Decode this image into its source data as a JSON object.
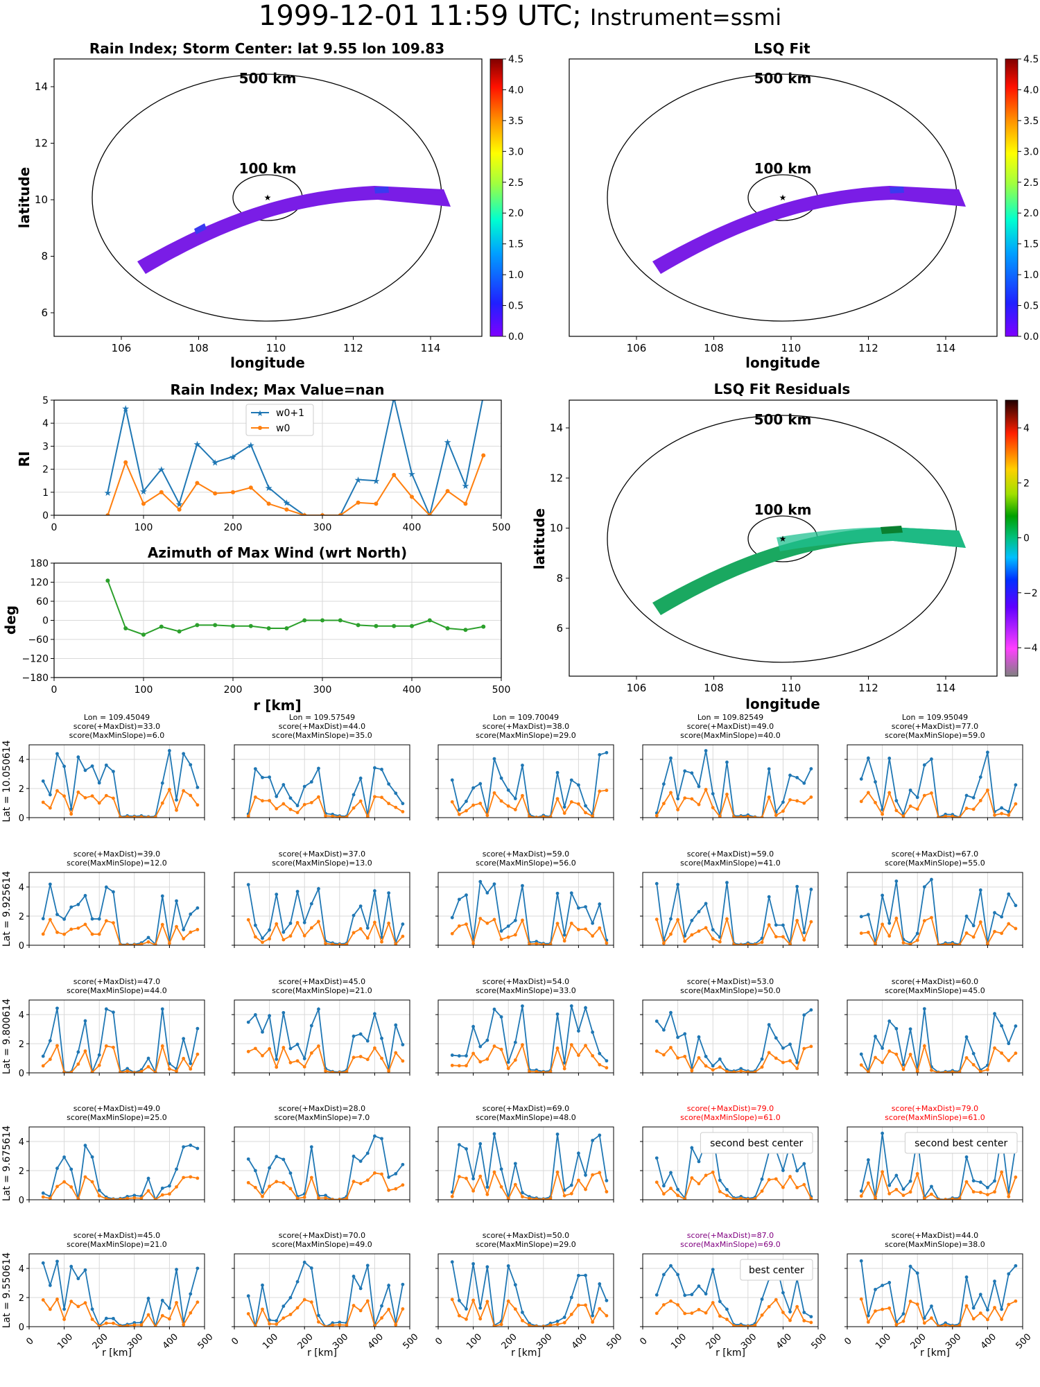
{
  "title": {
    "date": "1999-12-01 11:59 UTC;",
    "instrument": "Instrument=ssmi"
  },
  "colors": {
    "w0p1": "#1f77b4",
    "w0": "#ff7f0e",
    "azimuth": "#2ca02c",
    "highlight_red": "#ff0000",
    "highlight_purple": "#800080",
    "grid": "#d9d9d9"
  },
  "rain_map": {
    "title": "Rain Index; Storm Center: lat 9.55 lon 109.83",
    "xlabel": "longitude",
    "ylabel": "latitude",
    "circle_500": "500 km",
    "circle_100": "100 km",
    "xticks": [
      "106",
      "108",
      "110",
      "112",
      "114"
    ],
    "yticks": [
      "6",
      "8",
      "10",
      "12",
      "14"
    ],
    "colorbar_ticks": [
      "0.0",
      "0.5",
      "1.0",
      "1.5",
      "2.0",
      "2.5",
      "3.0",
      "3.5",
      "4.0",
      "4.5"
    ]
  },
  "lsq_map": {
    "title": "LSQ Fit",
    "xlabel": "longitude",
    "circle_500": "500 km",
    "circle_100": "100 km",
    "xticks": [
      "106",
      "108",
      "110",
      "112",
      "114"
    ],
    "colorbar_ticks": [
      "0.0",
      "0.5",
      "1.0",
      "1.5",
      "2.0",
      "2.5",
      "3.0",
      "3.5",
      "4.0",
      "4.5"
    ]
  },
  "resid_map": {
    "title": "LSQ Fit Residuals",
    "xlabel": "longitude",
    "ylabel": "latitude",
    "circle_500": "500 km",
    "circle_100": "100 km",
    "xticks": [
      "106",
      "108",
      "110",
      "112",
      "114"
    ],
    "yticks": [
      "6",
      "8",
      "10",
      "12",
      "14"
    ],
    "colorbar_ticks": [
      "−4",
      "−2",
      "0",
      "2",
      "4"
    ]
  },
  "chart_data": [
    {
      "type": "line",
      "title": "Rain Index; Max Value=nan",
      "ylabel": "RI",
      "xlim": [
        0,
        500
      ],
      "ylim": [
        0,
        5
      ],
      "xticks": [
        "0",
        "100",
        "200",
        "300",
        "400",
        "500"
      ],
      "yticks": [
        "0",
        "1",
        "2",
        "3",
        "4",
        "5"
      ],
      "legend": "top-center",
      "series": [
        {
          "name": "w0+1",
          "x": [
            60,
            80,
            100,
            120,
            140,
            160,
            180,
            200,
            220,
            240,
            260,
            280,
            300,
            320,
            340,
            360,
            380,
            400,
            420,
            440,
            460,
            480
          ],
          "values": [
            1.0,
            4.65,
            1.05,
            2.0,
            0.5,
            3.1,
            2.3,
            2.55,
            3.05,
            1.2,
            0.55,
            0,
            0,
            0,
            1.55,
            1.5,
            5.1,
            1.8,
            0,
            3.2,
            1.3,
            5.2
          ]
        },
        {
          "name": "w0",
          "x": [
            60,
            80,
            100,
            120,
            140,
            160,
            180,
            200,
            220,
            240,
            260,
            280,
            300,
            320,
            340,
            360,
            380,
            400,
            420,
            440,
            460,
            480
          ],
          "values": [
            0,
            2.3,
            0.5,
            1.0,
            0.25,
            1.4,
            0.95,
            1.0,
            1.2,
            0.5,
            0.25,
            0,
            0,
            0,
            0.55,
            0.5,
            1.75,
            0.8,
            0,
            1.05,
            0.5,
            2.6
          ]
        }
      ]
    },
    {
      "type": "line",
      "title": "Azimuth of Max Wind (wrt North)",
      "xlabel": "r [km]",
      "ylabel": "deg",
      "xlim": [
        0,
        500
      ],
      "ylim": [
        -180,
        180
      ],
      "xticks": [
        "0",
        "100",
        "200",
        "300",
        "400",
        "500"
      ],
      "yticks": [
        "180",
        "120",
        "60",
        "0",
        "−60",
        "−120",
        "−180"
      ],
      "series": [
        {
          "x": [
            60,
            80,
            100,
            120,
            140,
            160,
            180,
            200,
            220,
            240,
            260,
            280,
            300,
            320,
            340,
            360,
            380,
            400,
            420,
            440,
            460,
            480
          ],
          "values": [
            125,
            -25,
            -45,
            -20,
            -35,
            -15,
            -15,
            -18,
            -18,
            -25,
            -25,
            0,
            0,
            0,
            -15,
            -18,
            -18,
            -18,
            0,
            -25,
            -30,
            -20
          ]
        }
      ]
    }
  ],
  "grid": {
    "xlabel": "r [km]",
    "xticks": [
      "0",
      "100",
      "200",
      "300",
      "400",
      "500"
    ],
    "yticks": [
      "0",
      "2",
      "4"
    ],
    "lon_prefix": "Lon = ",
    "lons": [
      "109.45049",
      "109.57549",
      "109.70049",
      "109.82549",
      "109.95049"
    ],
    "lats": [
      "Lat = 10.050614",
      "Lat = 9.925614",
      "Lat = 9.800614",
      "Lat = 9.675614",
      "Lat = 9.550614"
    ],
    "cells": [
      [
        {
          "s1": "score(+MaxDist)=33.0",
          "s2": "score(MaxMinSlope)=6.0"
        },
        {
          "s1": "score(+MaxDist)=44.0",
          "s2": "score(MaxMinSlope)=35.0"
        },
        {
          "s1": "score(+MaxDist)=38.0",
          "s2": "score(MaxMinSlope)=29.0"
        },
        {
          "s1": "score(+MaxDist)=49.0",
          "s2": "score(MaxMinSlope)=40.0"
        },
        {
          "s1": "score(+MaxDist)=77.0",
          "s2": "score(MaxMinSlope)=59.0"
        }
      ],
      [
        {
          "s1": "score(+MaxDist)=39.0",
          "s2": "score(MaxMinSlope)=12.0"
        },
        {
          "s1": "score(+MaxDist)=37.0",
          "s2": "score(MaxMinSlope)=13.0"
        },
        {
          "s1": "score(+MaxDist)=59.0",
          "s2": "score(MaxMinSlope)=56.0"
        },
        {
          "s1": "score(+MaxDist)=59.0",
          "s2": "score(MaxMinSlope)=41.0"
        },
        {
          "s1": "score(+MaxDist)=67.0",
          "s2": "score(MaxMinSlope)=55.0"
        }
      ],
      [
        {
          "s1": "score(+MaxDist)=47.0",
          "s2": "score(MaxMinSlope)=44.0"
        },
        {
          "s1": "score(+MaxDist)=45.0",
          "s2": "score(MaxMinSlope)=21.0"
        },
        {
          "s1": "score(+MaxDist)=54.0",
          "s2": "score(MaxMinSlope)=33.0"
        },
        {
          "s1": "score(+MaxDist)=53.0",
          "s2": "score(MaxMinSlope)=50.0"
        },
        {
          "s1": "score(+MaxDist)=60.0",
          "s2": "score(MaxMinSlope)=45.0"
        }
      ],
      [
        {
          "s1": "score(+MaxDist)=49.0",
          "s2": "score(MaxMinSlope)=25.0"
        },
        {
          "s1": "score(+MaxDist)=28.0",
          "s2": "score(MaxMinSlope)=7.0"
        },
        {
          "s1": "score(+MaxDist)=69.0",
          "s2": "score(MaxMinSlope)=48.0"
        },
        {
          "s1": "score(+MaxDist)=79.0",
          "s2": "score(MaxMinSlope)=61.0",
          "color": "#ff0000",
          "note": "second best center"
        },
        {
          "s1": "score(+MaxDist)=79.0",
          "s2": "score(MaxMinSlope)=61.0",
          "color": "#ff0000",
          "note": "second best center"
        }
      ],
      [
        {
          "s1": "score(+MaxDist)=45.0",
          "s2": "score(MaxMinSlope)=21.0"
        },
        {
          "s1": "score(+MaxDist)=70.0",
          "s2": "score(MaxMinSlope)=49.0"
        },
        {
          "s1": "score(+MaxDist)=50.0",
          "s2": "score(MaxMinSlope)=29.0"
        },
        {
          "s1": "score(+MaxDist)=87.0",
          "s2": "score(MaxMinSlope)=69.0",
          "color": "#800080",
          "note": "best center"
        },
        {
          "s1": "score(+MaxDist)=44.0",
          "s2": "score(MaxMinSlope)=38.0"
        }
      ]
    ]
  }
}
